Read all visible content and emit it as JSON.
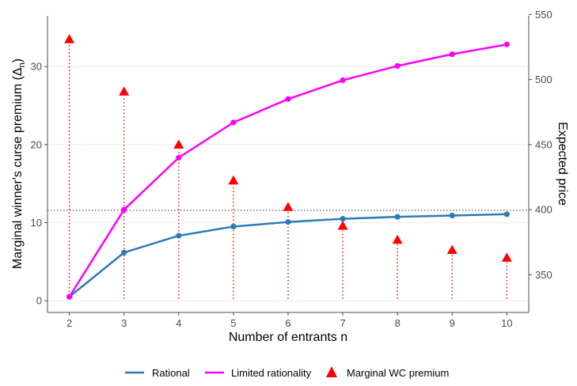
{
  "chart_data": {
    "type": "line",
    "x": [
      2,
      3,
      4,
      5,
      6,
      7,
      8,
      9,
      10
    ],
    "xlabel": "Number of entrants n",
    "ylabel_left": "Marginal winner's curse premium (Δ",
    "ylabel_left_sub": "n",
    "ylabel_left_close": ")",
    "ylabel_right": "Expected price",
    "xlim": [
      1.6,
      10.4
    ],
    "ylim_left": [
      -1.5,
      36.5
    ],
    "ylim_right": [
      321,
      549
    ],
    "x_ticks": [
      "2",
      "3",
      "4",
      "5",
      "6",
      "7",
      "8",
      "9",
      "10"
    ],
    "y_left_ticks": [
      "0",
      "10",
      "20",
      "30"
    ],
    "y_right_ticks": [
      "350",
      "400",
      "450",
      "500",
      "550"
    ],
    "reference_line_right_axis": 399.5,
    "series": [
      {
        "name": "Rational",
        "axis": "right",
        "color": "#2c7bb6",
        "values": [
          333,
          367,
          380,
          387,
          390.5,
          393,
          394.5,
          395.5,
          396.5
        ]
      },
      {
        "name": "Limited rationality",
        "axis": "right",
        "color": "#ff00ff",
        "values": [
          333,
          400,
          440,
          467,
          485,
          499.5,
          510.5,
          519.5,
          527
        ]
      },
      {
        "name": "Marginal WC premium",
        "axis": "left",
        "color": "#ff0000",
        "values": [
          33.5,
          26.8,
          20,
          15.4,
          12,
          9.6,
          7.8,
          6.5,
          5.5
        ]
      }
    ],
    "legend": {
      "position": "bottom",
      "items": [
        "Rational",
        "Limited rationality",
        "Marginal WC premium"
      ]
    }
  }
}
